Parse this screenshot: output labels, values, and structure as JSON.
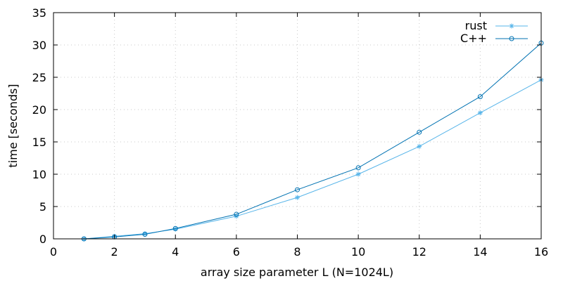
{
  "chart_data": {
    "type": "line",
    "xlabel": "array size parameter L (N=1024L)",
    "ylabel": "time [seconds]",
    "xlim": [
      0,
      16
    ],
    "ylim": [
      0,
      35
    ],
    "xticks": [
      0,
      2,
      4,
      6,
      8,
      10,
      12,
      14,
      16
    ],
    "yticks": [
      0,
      5,
      10,
      15,
      20,
      25,
      30,
      35
    ],
    "grid": true,
    "legend_position": "top-right",
    "series": [
      {
        "name": "rust",
        "color": "#56b4e9",
        "marker": "asterisk",
        "x": [
          1,
          2,
          3,
          4,
          6,
          8,
          10,
          12,
          14,
          16
        ],
        "y": [
          0.0,
          0.4,
          0.8,
          1.5,
          3.5,
          6.4,
          10.0,
          14.3,
          19.5,
          24.6
        ]
      },
      {
        "name": "C++",
        "color": "#0072b2",
        "marker": "circle",
        "x": [
          1,
          2,
          3,
          4,
          6,
          8,
          10,
          12,
          14,
          16
        ],
        "y": [
          0.0,
          0.3,
          0.7,
          1.6,
          3.8,
          7.6,
          11.0,
          16.5,
          22.0,
          30.3
        ]
      }
    ]
  }
}
